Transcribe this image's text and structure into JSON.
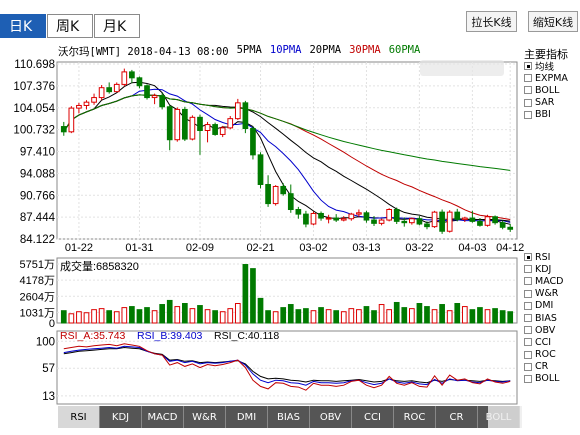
{
  "period_tabs": [
    {
      "label": "日K",
      "active": true
    },
    {
      "label": "周K",
      "active": false
    },
    {
      "label": "月K",
      "active": false
    }
  ],
  "toolbar": {
    "stretch_label": "拉长K线",
    "shrink_label": "缩短K线"
  },
  "header": {
    "stock": "沃尔玛[WMT] 2018-04-13 08:00",
    "ma_legend": [
      "5PMA",
      "10PMA",
      "20PMA",
      "30PMA",
      "60PMA"
    ]
  },
  "side_panel": {
    "title": "主要指标",
    "main_indicators": [
      {
        "label": "均线",
        "checked": true
      },
      {
        "label": "EXPMA",
        "checked": false
      },
      {
        "label": "BOLL",
        "checked": false
      },
      {
        "label": "SAR",
        "checked": false
      },
      {
        "label": "BBI",
        "checked": false
      }
    ],
    "sub_indicators": [
      {
        "label": "RSI",
        "checked": true
      },
      {
        "label": "KDJ",
        "checked": false
      },
      {
        "label": "MACD",
        "checked": false
      },
      {
        "label": "W&R",
        "checked": false
      },
      {
        "label": "DMI",
        "checked": false
      },
      {
        "label": "BIAS",
        "checked": false
      },
      {
        "label": "OBV",
        "checked": false
      },
      {
        "label": "CCI",
        "checked": false
      },
      {
        "label": "ROC",
        "checked": false
      },
      {
        "label": "CR",
        "checked": false
      },
      {
        "label": "BOLL",
        "checked": false
      }
    ]
  },
  "bottom_tabs": [
    "RSI",
    "KDJ",
    "MACD",
    "W&R",
    "DMI",
    "BIAS",
    "OBV",
    "CCI",
    "ROC",
    "CR",
    "BOLL"
  ],
  "volume": {
    "label": "成交量:6858320",
    "y_ticks": [
      "5751万",
      "4178万",
      "2604万",
      "1031万",
      "0"
    ]
  },
  "rsi": {
    "label_a": "RSI_A:35.743",
    "label_b": "RSI_B:39.403",
    "label_c": "RSI_C:40.118",
    "y_ticks": [
      "100",
      "57",
      "13"
    ]
  },
  "colors": {
    "up": "#dd0000",
    "down": "#007a00",
    "ma5": "#000000",
    "ma10": "#0000cc",
    "ma20": "#000000",
    "ma30": "#c00000",
    "ma60": "#007a00",
    "active_tab": "#1e5fb4"
  },
  "chart_data": {
    "type": "candlestick",
    "y_ticks": [
      110.698,
      107.376,
      104.054,
      100.732,
      97.41,
      94.088,
      90.766,
      87.444,
      84.122
    ],
    "ylim": [
      84.122,
      110.698
    ],
    "x_ticks": [
      "01-22",
      "01-31",
      "02-09",
      "02-21",
      "03-02",
      "03-13",
      "03-22",
      "04-03",
      "04-12"
    ],
    "candles": [
      [
        101.2,
        101.9,
        99.8,
        100.4
      ],
      [
        100.4,
        104.3,
        100.2,
        104.0
      ],
      [
        104.0,
        104.8,
        103.2,
        104.4
      ],
      [
        104.4,
        105.2,
        103.8,
        104.9
      ],
      [
        104.9,
        106.2,
        104.5,
        105.6
      ],
      [
        105.6,
        107.5,
        105.2,
        107.1
      ],
      [
        107.1,
        107.9,
        106.2,
        106.5
      ],
      [
        106.5,
        107.9,
        106.4,
        107.6
      ],
      [
        107.6,
        110.0,
        107.3,
        109.5
      ],
      [
        109.5,
        109.8,
        107.8,
        108.6
      ],
      [
        108.6,
        108.8,
        107.0,
        107.4
      ],
      [
        107.4,
        107.6,
        105.3,
        105.6
      ],
      [
        105.6,
        106.2,
        104.6,
        105.9
      ],
      [
        105.9,
        106.3,
        103.8,
        104.2
      ],
      [
        104.2,
        104.5,
        97.6,
        99.2
      ],
      [
        99.2,
        104.1,
        98.9,
        103.8
      ],
      [
        103.8,
        104.2,
        99.0,
        99.3
      ],
      [
        99.3,
        102.9,
        99.1,
        102.6
      ],
      [
        102.6,
        103.0,
        96.9,
        100.6
      ],
      [
        100.6,
        101.9,
        98.8,
        101.5
      ],
      [
        101.5,
        101.8,
        99.8,
        100.0
      ],
      [
        100.0,
        101.3,
        99.6,
        101.0
      ],
      [
        101.0,
        102.8,
        100.8,
        102.4
      ],
      [
        102.4,
        105.4,
        102.2,
        104.8
      ],
      [
        104.8,
        105.1,
        100.2,
        100.9
      ],
      [
        100.9,
        101.2,
        96.2,
        96.9
      ],
      [
        96.9,
        97.3,
        91.8,
        92.4
      ],
      [
        92.4,
        93.8,
        89.0,
        89.5
      ],
      [
        89.5,
        92.3,
        89.2,
        92.1
      ],
      [
        92.1,
        92.6,
        90.7,
        91.0
      ],
      [
        91.0,
        92.4,
        88.1,
        88.6
      ],
      [
        88.6,
        89.0,
        87.2,
        87.9
      ],
      [
        87.9,
        88.4,
        85.9,
        86.4
      ],
      [
        86.4,
        88.3,
        86.2,
        88.0
      ],
      [
        88.0,
        88.3,
        86.9,
        87.3
      ],
      [
        87.3,
        87.8,
        86.5,
        87.3
      ],
      [
        87.3,
        87.9,
        86.7,
        87.0
      ],
      [
        87.0,
        87.6,
        86.8,
        87.2
      ],
      [
        87.2,
        88.1,
        86.9,
        87.9
      ],
      [
        87.9,
        88.6,
        87.5,
        88.1
      ],
      [
        88.1,
        88.4,
        86.6,
        87.0
      ],
      [
        87.0,
        87.6,
        86.1,
        86.5
      ],
      [
        86.5,
        87.2,
        86.2,
        87.0
      ],
      [
        87.0,
        88.8,
        86.8,
        88.6
      ],
      [
        88.6,
        88.9,
        86.4,
        86.8
      ],
      [
        86.8,
        87.4,
        86.0,
        86.6
      ],
      [
        86.6,
        87.4,
        86.3,
        87.2
      ],
      [
        87.2,
        87.6,
        86.2,
        86.4
      ],
      [
        86.4,
        86.8,
        85.6,
        86.0
      ],
      [
        86.0,
        88.4,
        85.8,
        88.2
      ],
      [
        88.2,
        88.6,
        84.9,
        85.3
      ],
      [
        85.3,
        88.5,
        85.1,
        88.2
      ],
      [
        88.2,
        88.7,
        86.8,
        87.1
      ],
      [
        87.1,
        87.5,
        86.7,
        87.3
      ],
      [
        87.3,
        88.4,
        86.6,
        86.8
      ],
      [
        86.8,
        87.3,
        86.0,
        86.2
      ],
      [
        86.2,
        87.8,
        86.0,
        87.5
      ],
      [
        87.5,
        87.7,
        86.3,
        86.6
      ],
      [
        86.6,
        86.9,
        85.6,
        85.9
      ],
      [
        85.9,
        86.4,
        85.2,
        85.6
      ]
    ],
    "volume_values": [
      1200,
      900,
      1100,
      1000,
      1300,
      1400,
      1200,
      1100,
      1500,
      1600,
      1300,
      1500,
      1200,
      1800,
      2200,
      1600,
      1900,
      1400,
      1700,
      1300,
      1200,
      1100,
      1400,
      1900,
      5700,
      5300,
      2400,
      1200,
      1100,
      1500,
      1800,
      1300,
      1400,
      1200,
      1500,
      1300,
      1200,
      1100,
      1400,
      1300,
      1600,
      1200,
      1800,
      1300,
      2000,
      1500,
      1400,
      1900,
      1600,
      1300,
      1800,
      1200,
      1900,
      1600,
      1300,
      1500,
      1300,
      1400,
      1200,
      1100
    ],
    "volume_ylim": [
      0,
      5751
    ],
    "rsi_a": [
      88,
      90,
      92,
      91,
      93,
      94,
      95,
      93,
      96,
      94,
      92,
      85,
      80,
      78,
      62,
      66,
      60,
      64,
      58,
      63,
      61,
      63,
      66,
      70,
      58,
      38,
      28,
      24,
      34,
      33,
      28,
      27,
      22,
      33,
      30,
      30,
      28,
      30,
      36,
      38,
      30,
      26,
      30,
      44,
      33,
      30,
      34,
      28,
      27,
      45,
      30,
      46,
      38,
      40,
      34,
      32,
      40,
      35,
      33,
      36
    ],
    "rsi_b": [
      82,
      84,
      86,
      87,
      88,
      89,
      90,
      89,
      92,
      91,
      90,
      84,
      80,
      78,
      68,
      70,
      66,
      68,
      64,
      66,
      65,
      66,
      68,
      70,
      62,
      48,
      38,
      34,
      38,
      37,
      34,
      33,
      30,
      36,
      34,
      34,
      33,
      34,
      37,
      38,
      34,
      31,
      33,
      40,
      35,
      33,
      35,
      32,
      31,
      39,
      33,
      40,
      37,
      38,
      35,
      34,
      38,
      36,
      35,
      37
    ],
    "rsi_c": [
      80,
      82,
      84,
      85,
      86,
      87,
      88,
      88,
      90,
      89,
      88,
      84,
      81,
      79,
      70,
      71,
      68,
      69,
      66,
      67,
      66,
      67,
      68,
      69,
      64,
      52,
      44,
      40,
      41,
      40,
      38,
      37,
      35,
      38,
      37,
      37,
      36,
      37,
      38,
      39,
      37,
      35,
      36,
      40,
      37,
      36,
      37,
      35,
      34,
      38,
      36,
      39,
      38,
      38,
      37,
      36,
      38,
      37,
      36,
      37
    ],
    "rsi_ylim": [
      0,
      110
    ]
  }
}
